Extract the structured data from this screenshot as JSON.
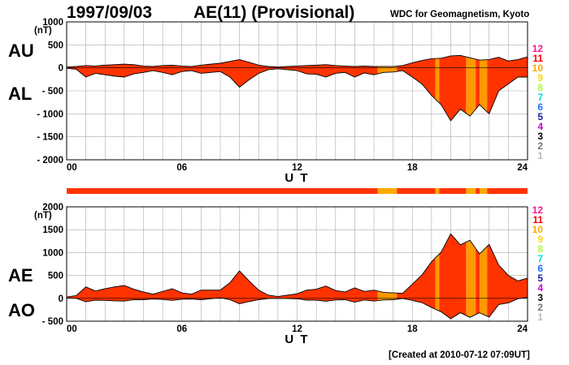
{
  "header": {
    "date": "1997/09/03",
    "title": "AE(11) (Provisional)",
    "source": "WDC for Geomagnetism, Kyoto"
  },
  "footer": {
    "created": "[Created at 2010-07-12 07:09UT]"
  },
  "colors": {
    "fill_main": "#ff3300",
    "fill_hi": "#ff9900",
    "bar_main": "#ff3300",
    "bar_hi": "#ffaa00",
    "outline": "#000000",
    "grid": "#aaaaaa"
  },
  "legend": [
    {
      "label": "12",
      "color": "#ff1493"
    },
    {
      "label": "11",
      "color": "#ff0000"
    },
    {
      "label": "10",
      "color": "#ffa500"
    },
    {
      "label": "9",
      "color": "#ffd700"
    },
    {
      "label": "8",
      "color": "#adff2f"
    },
    {
      "label": "7",
      "color": "#00e0e0"
    },
    {
      "label": "6",
      "color": "#1e6cff"
    },
    {
      "label": "5",
      "color": "#1a1aa6"
    },
    {
      "label": "4",
      "color": "#cc00cc"
    },
    {
      "label": "3",
      "color": "#000000"
    },
    {
      "label": "2",
      "color": "#777777"
    },
    {
      "label": "1",
      "color": "#bbbbbb"
    }
  ],
  "chart_data": [
    {
      "type": "area",
      "panel": "AU/AL",
      "labels": {
        "top": "AU",
        "bottom": "AL",
        "unit": "(nT)",
        "xlabel": "U T"
      },
      "xlim": [
        0,
        24
      ],
      "ylim": [
        -2000,
        1000
      ],
      "xticks": [
        "00",
        "06",
        "12",
        "18",
        "24"
      ],
      "yticks": [
        "1000",
        "500",
        "0",
        "- 500",
        "- 1000",
        "- 1500",
        "- 2000"
      ],
      "grid": true,
      "station_count_segments": [
        {
          "x0": 0,
          "x1": 16.2,
          "level": "11"
        },
        {
          "x0": 16.2,
          "x1": 17.2,
          "level": "10"
        },
        {
          "x0": 17.2,
          "x1": 19.2,
          "level": "11"
        },
        {
          "x0": 19.2,
          "x1": 19.4,
          "level": "10"
        },
        {
          "x0": 19.4,
          "x1": 20.8,
          "level": "11"
        },
        {
          "x0": 20.8,
          "x1": 21.3,
          "level": "10"
        },
        {
          "x0": 21.3,
          "x1": 21.5,
          "level": "11"
        },
        {
          "x0": 21.5,
          "x1": 21.9,
          "level": "10"
        },
        {
          "x0": 21.9,
          "x1": 24,
          "level": "11"
        }
      ],
      "series": [
        {
          "name": "AU",
          "x": [
            0,
            0.5,
            1,
            1.5,
            2,
            2.5,
            3,
            3.5,
            4,
            4.5,
            5,
            5.5,
            6,
            6.5,
            7,
            7.5,
            8,
            8.5,
            9,
            9.5,
            10,
            10.5,
            11,
            11.5,
            12,
            12.5,
            13,
            13.5,
            14,
            14.5,
            15,
            15.5,
            16,
            16.5,
            17,
            17.5,
            18,
            18.5,
            19,
            19.5,
            20,
            20.5,
            21,
            21.5,
            22,
            22.5,
            23,
            23.5,
            24
          ],
          "values": [
            20,
            30,
            50,
            40,
            60,
            70,
            80,
            70,
            40,
            30,
            50,
            60,
            40,
            30,
            60,
            80,
            100,
            140,
            180,
            120,
            60,
            30,
            20,
            30,
            40,
            50,
            60,
            70,
            50,
            40,
            30,
            40,
            30,
            30,
            30,
            50,
            110,
            160,
            200,
            210,
            260,
            270,
            220,
            170,
            180,
            230,
            150,
            180,
            240
          ]
        },
        {
          "name": "AL",
          "x": [
            0,
            0.5,
            1,
            1.5,
            2,
            2.5,
            3,
            3.5,
            4,
            4.5,
            5,
            5.5,
            6,
            6.5,
            7,
            7.5,
            8,
            8.5,
            9,
            9.5,
            10,
            10.5,
            11,
            11.5,
            12,
            12.5,
            13,
            13.5,
            14,
            14.5,
            15,
            15.5,
            16,
            16.5,
            17,
            17.5,
            18,
            18.5,
            19,
            19.5,
            20,
            20.5,
            21,
            21.5,
            22,
            22.5,
            23,
            23.5,
            24
          ],
          "values": [
            -10,
            -30,
            -200,
            -120,
            -150,
            -180,
            -200,
            -130,
            -100,
            -60,
            -100,
            -150,
            -80,
            -60,
            -120,
            -100,
            -80,
            -200,
            -420,
            -260,
            -120,
            -40,
            -20,
            -40,
            -60,
            -130,
            -140,
            -200,
            -120,
            -100,
            -200,
            -110,
            -150,
            -100,
            -90,
            -60,
            -200,
            -350,
            -600,
            -800,
            -1150,
            -900,
            -1050,
            -800,
            -1000,
            -500,
            -350,
            -200,
            -200
          ]
        }
      ]
    },
    {
      "type": "area",
      "panel": "AE/AO",
      "labels": {
        "top": "AE",
        "bottom": "AO",
        "unit": "(nT)",
        "xlabel": "U T"
      },
      "xlim": [
        0,
        24
      ],
      "ylim": [
        -500,
        2000
      ],
      "xticks": [
        "00",
        "06",
        "12",
        "18",
        "24"
      ],
      "yticks": [
        "2000",
        "1500",
        "1000",
        "500",
        "0",
        "- 500"
      ],
      "grid": true,
      "series": [
        {
          "name": "AE",
          "x": [
            0,
            0.5,
            1,
            1.5,
            2,
            2.5,
            3,
            3.5,
            4,
            4.5,
            5,
            5.5,
            6,
            6.5,
            7,
            7.5,
            8,
            8.5,
            9,
            9.5,
            10,
            10.5,
            11,
            11.5,
            12,
            12.5,
            13,
            13.5,
            14,
            14.5,
            15,
            15.5,
            16,
            16.5,
            17,
            17.5,
            18,
            18.5,
            19,
            19.5,
            20,
            20.5,
            21,
            21.5,
            22,
            22.5,
            23,
            23.5,
            24
          ],
          "values": [
            30,
            60,
            250,
            160,
            210,
            250,
            280,
            200,
            140,
            90,
            150,
            210,
            120,
            90,
            180,
            180,
            180,
            340,
            600,
            380,
            180,
            70,
            40,
            70,
            100,
            180,
            200,
            270,
            170,
            140,
            230,
            150,
            180,
            130,
            120,
            110,
            310,
            510,
            800,
            1010,
            1410,
            1170,
            1270,
            970,
            1180,
            730,
            500,
            380,
            440
          ]
        },
        {
          "name": "AO",
          "x": [
            0,
            0.5,
            1,
            1.5,
            2,
            2.5,
            3,
            3.5,
            4,
            4.5,
            5,
            5.5,
            6,
            6.5,
            7,
            7.5,
            8,
            8.5,
            9,
            9.5,
            10,
            10.5,
            11,
            11.5,
            12,
            12.5,
            13,
            13.5,
            14,
            14.5,
            15,
            15.5,
            16,
            16.5,
            17,
            17.5,
            18,
            18.5,
            19,
            19.5,
            20,
            20.5,
            21,
            21.5,
            22,
            22.5,
            23,
            23.5,
            24
          ],
          "values": [
            5,
            0,
            -75,
            -40,
            -45,
            -55,
            -60,
            -30,
            -30,
            -15,
            -25,
            -45,
            -20,
            -15,
            -30,
            -10,
            10,
            -30,
            -120,
            -70,
            -30,
            -5,
            0,
            -5,
            -10,
            -40,
            -40,
            -65,
            -35,
            -30,
            -85,
            -35,
            -60,
            -35,
            -30,
            -5,
            -45,
            -95,
            -200,
            -295,
            -445,
            -315,
            -415,
            -315,
            -410,
            -135,
            -100,
            -10,
            20
          ]
        }
      ]
    }
  ]
}
